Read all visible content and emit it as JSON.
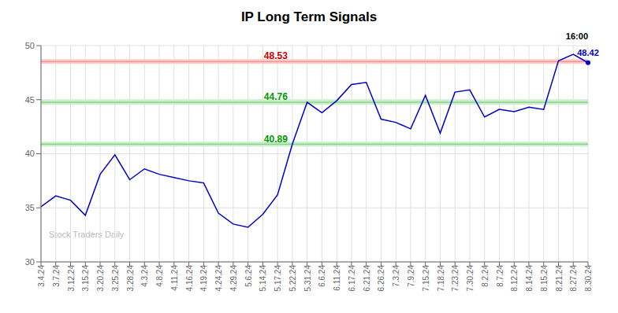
{
  "chart_data": {
    "type": "line",
    "title": "IP Long Term Signals",
    "categories": [
      "3.4.24",
      "3.7.24",
      "3.12.24",
      "3.15.24",
      "3.20.24",
      "3.25.24",
      "3.28.24",
      "4.3.24",
      "4.8.24",
      "4.11.24",
      "4.16.24",
      "4.19.24",
      "4.24.24",
      "4.29.24",
      "5.6.24",
      "5.14.24",
      "5.17.24",
      "5.22.24",
      "5.31.24",
      "6.6.24",
      "6.11.24",
      "6.17.24",
      "6.21.24",
      "6.26.24",
      "7.3.24",
      "7.9.24",
      "7.15.24",
      "7.18.24",
      "7.23.24",
      "7.30.24",
      "8.2.24",
      "8.7.24",
      "8.12.24",
      "8.14.24",
      "8.15.24",
      "8.21.24",
      "8.27.24",
      "8.30.24"
    ],
    "values": [
      35.1,
      36.1,
      35.7,
      34.3,
      38.1,
      39.9,
      37.6,
      38.6,
      38.1,
      37.8,
      37.5,
      37.3,
      34.5,
      33.5,
      33.2,
      34.4,
      36.2,
      40.89,
      44.76,
      43.8,
      44.9,
      46.4,
      46.6,
      43.2,
      42.9,
      42.3,
      45.4,
      41.9,
      45.7,
      45.9,
      43.4,
      44.1,
      43.9,
      44.3,
      44.1,
      48.6,
      49.2,
      48.42
    ],
    "color": "#0000cc",
    "ylim": [
      30,
      50
    ],
    "yticks": [
      30,
      35,
      40,
      45,
      50
    ],
    "grid": true,
    "reference_lines": [
      {
        "y": 48.53,
        "color": "#ff7777",
        "band_color": "#ffcccc"
      },
      {
        "y": 44.76,
        "color": "#66cc66",
        "band_color": "#cceecc"
      },
      {
        "y": 40.89,
        "color": "#66cc66",
        "band_color": "#cceecc"
      }
    ],
    "annotations": [
      {
        "text": "48.53",
        "x": "5.22.24",
        "y": 48.53,
        "color": "#cc0000"
      },
      {
        "text": "44.76",
        "x": "5.22.24",
        "y": 44.76,
        "color": "#009900"
      },
      {
        "text": "40.89",
        "x": "5.22.24",
        "y": 40.89,
        "color": "#009900"
      }
    ],
    "end_label": {
      "text": "48.42",
      "color": "#0000cc"
    },
    "time_label": "16:00",
    "watermark": {
      "text": "Stock Traders Daily",
      "color": "#bbbbbb"
    }
  }
}
